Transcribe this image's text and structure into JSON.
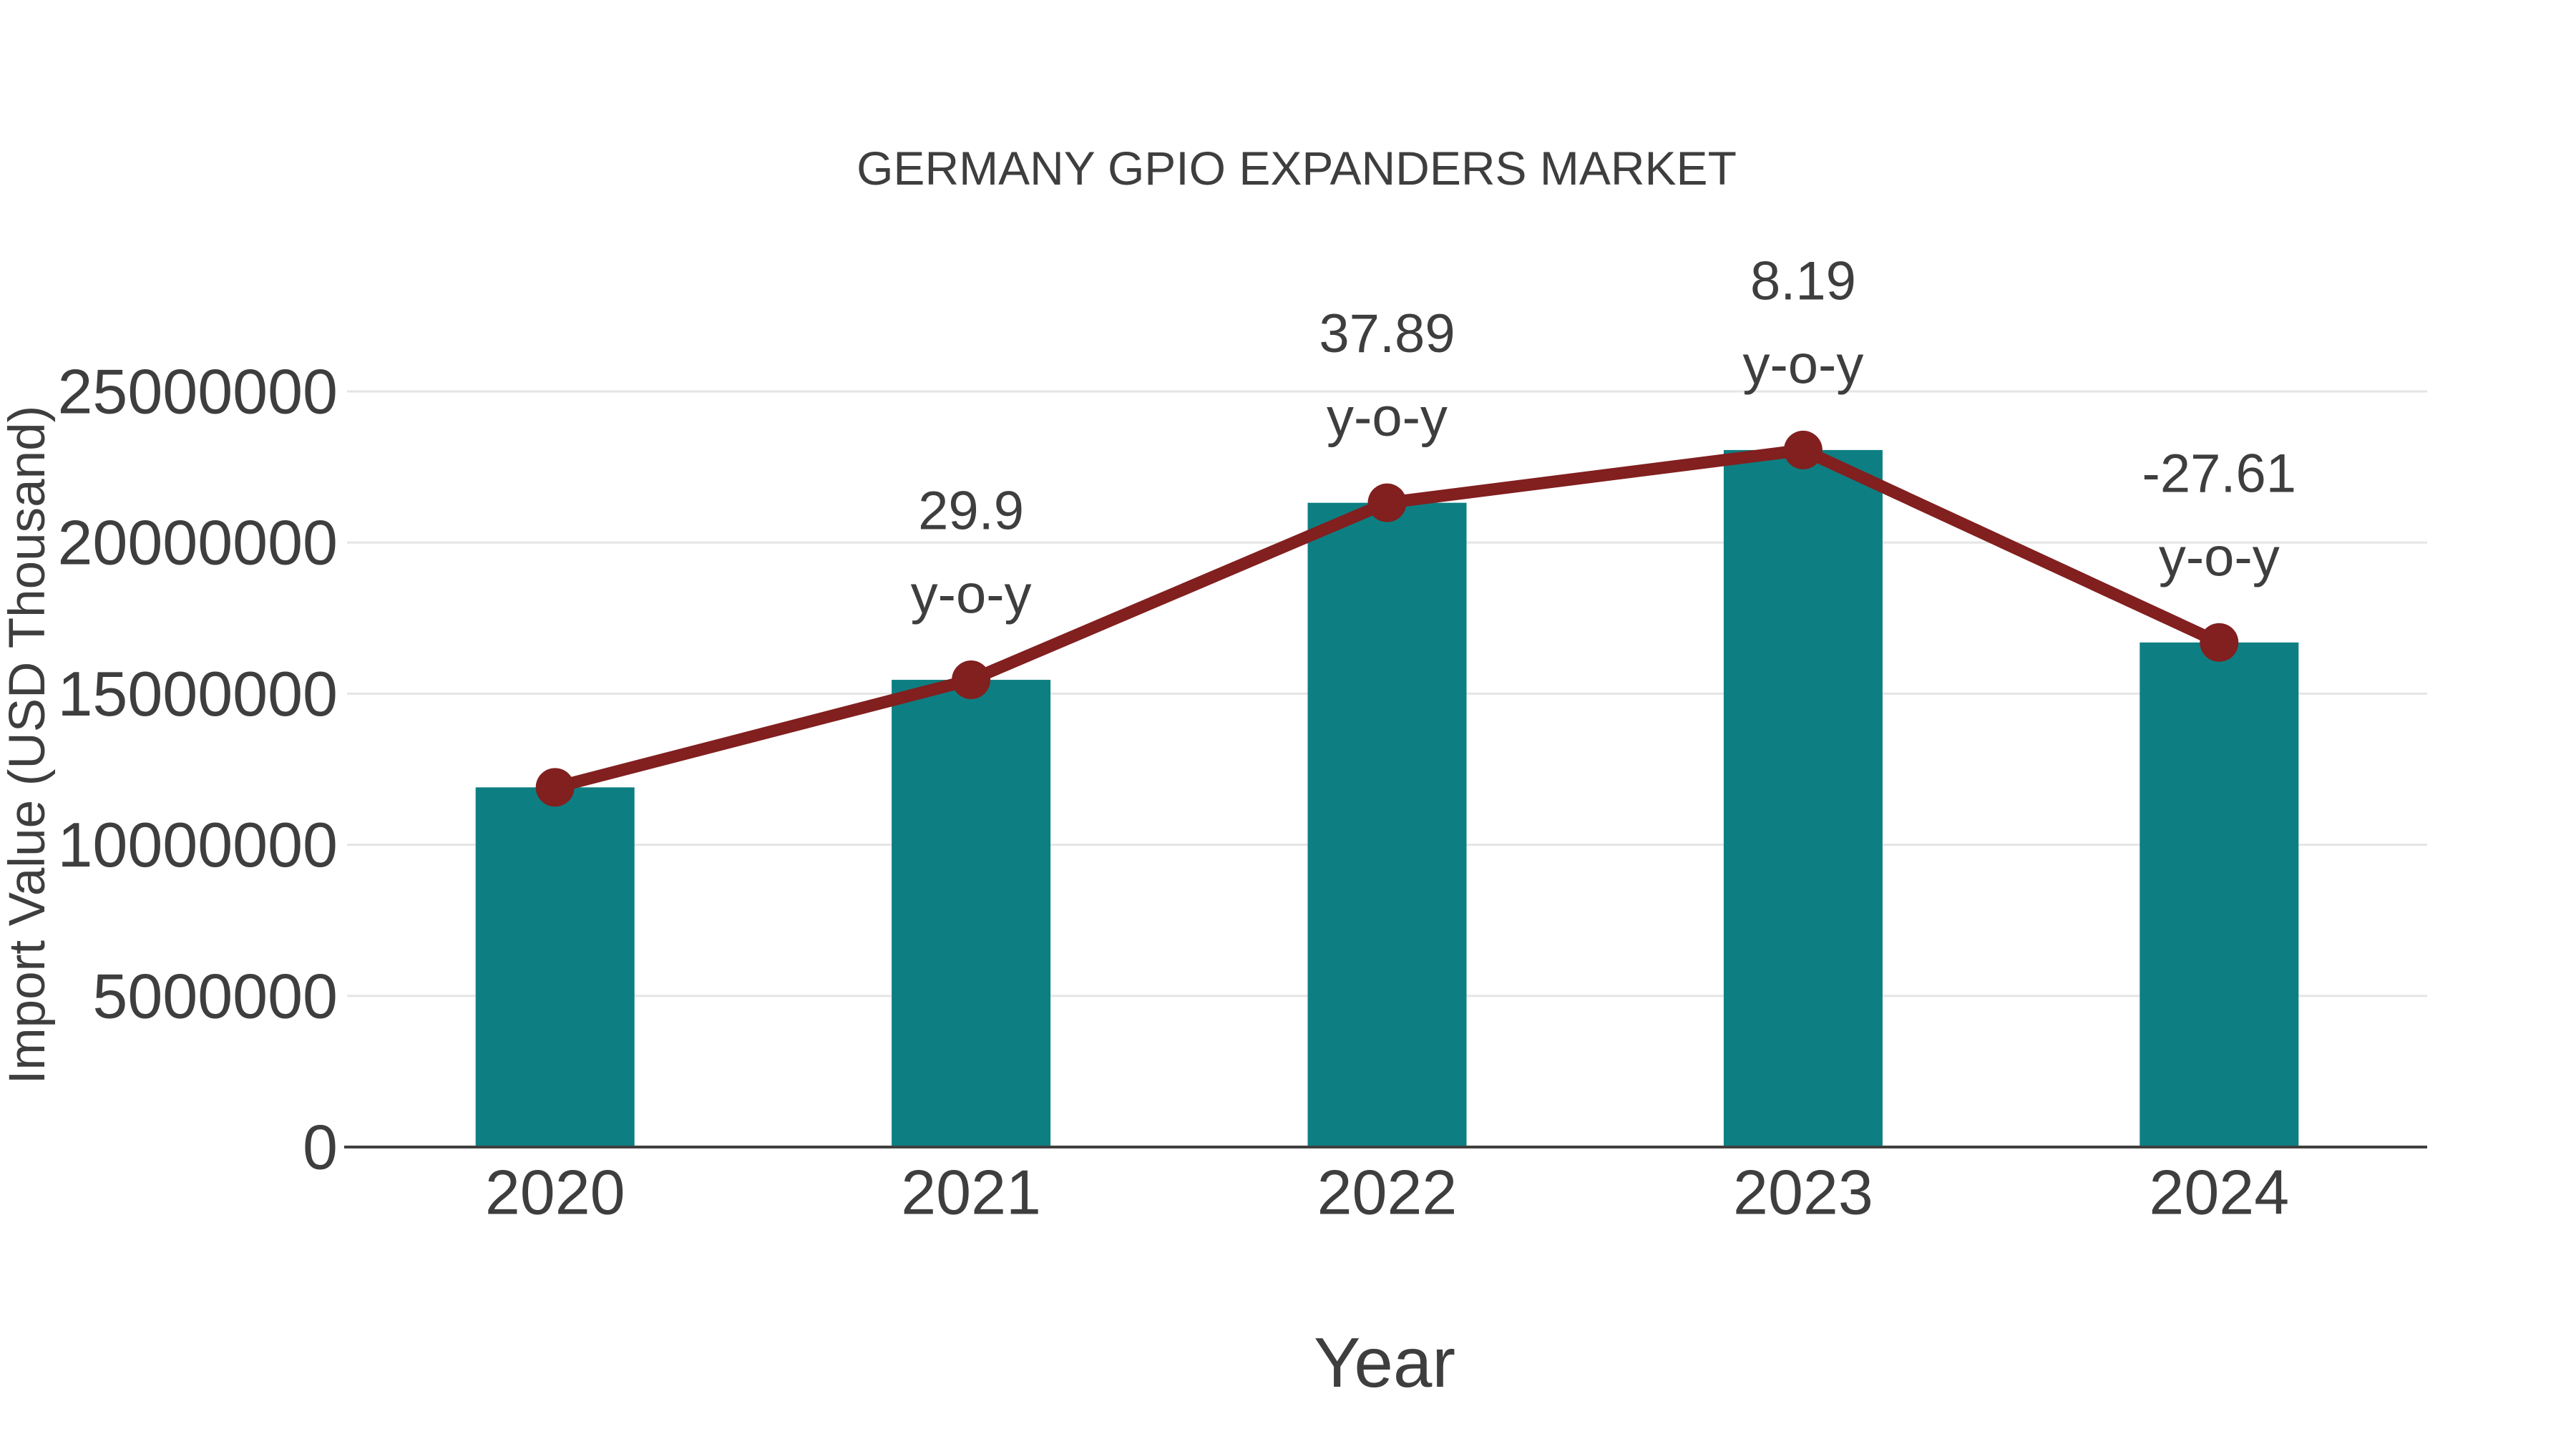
{
  "chart_data": {
    "type": "combo-bar-line",
    "title": "GERMANY GPIO EXPANDERS MARKET",
    "xlabel": "Year",
    "ylabel": "Import Value (USD Thousand)",
    "categories": [
      "2020",
      "2021",
      "2022",
      "2023",
      "2024"
    ],
    "series": [
      {
        "name": "Import Value (USD Thousand)",
        "type": "bar",
        "values": [
          11900000,
          15458100,
          21315173,
          23060885,
          16693775
        ],
        "color": "#0d7f82"
      },
      {
        "name": "y-o-y growth (%)",
        "type": "line",
        "values": [
          null,
          29.9,
          37.89,
          8.19,
          -27.61
        ],
        "color": "#821f1f"
      }
    ],
    "annotations": [
      {
        "category": "2021",
        "value_label": "29.9",
        "unit_label": "y-o-y"
      },
      {
        "category": "2022",
        "value_label": "37.89",
        "unit_label": "y-o-y"
      },
      {
        "category": "2023",
        "value_label": "8.19",
        "unit_label": "y-o-y"
      },
      {
        "category": "2024",
        "value_label": "-27.61",
        "unit_label": "y-o-y"
      }
    ],
    "ylim": [
      0,
      25000000
    ],
    "yticks": [
      "0",
      "5000000",
      "10000000",
      "15000000",
      "20000000",
      "25000000"
    ],
    "grid": "horizontal",
    "legend": "none",
    "colors": {
      "bar": "#0d7f82",
      "line": "#821f1f",
      "marker": "#821f1f",
      "text": "#3e3e3e",
      "gridline": "#e5e5e5",
      "axis": "#3f3f3f",
      "background": "#ffffff"
    }
  }
}
